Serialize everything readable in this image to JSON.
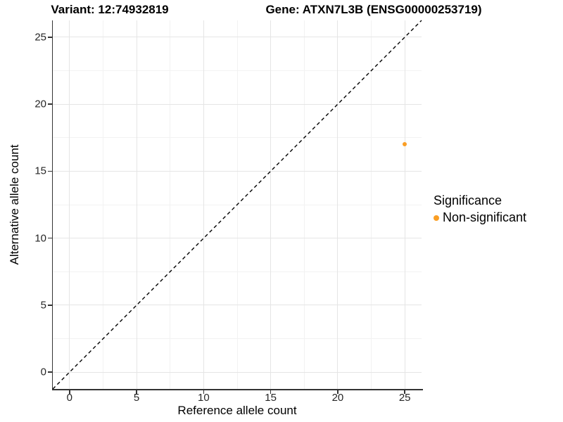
{
  "titles": {
    "variant": "Variant: 12:74932819",
    "gene": "Gene: ATXN7L3B (ENSG00000253719)"
  },
  "chart_data": {
    "type": "scatter",
    "title_left": "Variant: 12:74932819",
    "title_right": "Gene: ATXN7L3B (ENSG00000253719)",
    "xlabel": "Reference allele count",
    "ylabel": "Alternative allele count",
    "xlim": [
      -1.25,
      26.25
    ],
    "ylim": [
      -1.25,
      26.25
    ],
    "x_ticks": [
      0,
      5,
      10,
      15,
      20,
      25
    ],
    "y_ticks": [
      0,
      5,
      10,
      15,
      20,
      25
    ],
    "minor_gridlines": [
      2.5,
      7.5,
      12.5,
      17.5,
      22.5
    ],
    "grid": "on",
    "reference_line": {
      "kind": "identity",
      "style": "dashed",
      "color": "#000000"
    },
    "series": [
      {
        "name": "Non-significant",
        "color": "#FA9E24",
        "points": [
          {
            "x": 25,
            "y": 17
          }
        ]
      }
    ],
    "legend": {
      "title": "Significance",
      "position": "right",
      "entries": [
        {
          "label": "Non-significant",
          "color": "#FA9E24"
        }
      ]
    }
  },
  "colors": {
    "point_orange": "#FA9E24",
    "axis_line": "#333333",
    "grid_major": "#e5e5e5",
    "grid_minor": "#f2f2f2",
    "text": "#000000"
  }
}
